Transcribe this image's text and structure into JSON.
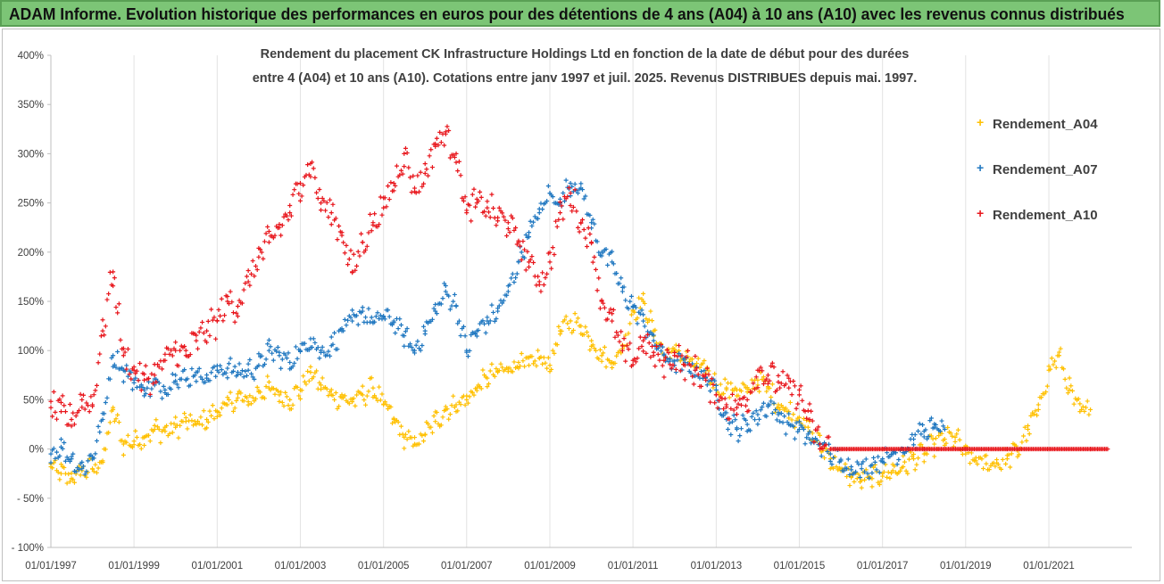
{
  "header": {
    "title": "ADAM Informe. Evolution historique des performances en euros pour des détentions de 4 ans (A04) à 10 ans (A10) avec les revenus connus distribués"
  },
  "chart_data": {
    "type": "scatter",
    "title_line1": "Rendement du placement CK Infrastructure Holdings Ltd en fonction de la date de début pour des durées",
    "title_line2": "entre 4 (A04) et 10 ans (A10).  Cotations entre janv 1997 et juil. 2025. Revenus DISTRIBUES depuis mai. 1997.",
    "xlabel": "",
    "ylabel": "",
    "y_ticks": [
      "400%",
      "350%",
      "300%",
      "250%",
      "200%",
      "150%",
      "100%",
      "50%",
      "0%",
      "- 50%",
      "- 100%"
    ],
    "y_range": [
      -100,
      400
    ],
    "x_ticks": [
      "01/01/1997",
      "01/01/1999",
      "01/01/2001",
      "01/01/2003",
      "01/01/2005",
      "01/01/2007",
      "01/01/2009",
      "01/01/2011",
      "01/01/2013",
      "01/01/2015",
      "01/01/2017",
      "01/01/2019",
      "01/01/2021"
    ],
    "x_range": [
      "1997-01-01",
      "2022-12-31"
    ],
    "marker": "+",
    "grid": "vertical",
    "legend_position": "right",
    "series": [
      {
        "name": "Rendement_A04",
        "color": "#ffc000",
        "points": [
          [
            "1997-01",
            -18
          ],
          [
            "1997-04",
            -25
          ],
          [
            "1997-07",
            -30
          ],
          [
            "1997-10",
            -22
          ],
          [
            "1998-01",
            -20
          ],
          [
            "1998-04",
            -12
          ],
          [
            "1998-07",
            40
          ],
          [
            "1998-10",
            5
          ],
          [
            "1999-01",
            8
          ],
          [
            "1999-04",
            12
          ],
          [
            "1999-07",
            20
          ],
          [
            "1999-10",
            18
          ],
          [
            "2000-01",
            22
          ],
          [
            "2000-04",
            28
          ],
          [
            "2000-07",
            25
          ],
          [
            "2000-10",
            30
          ],
          [
            "2001-01",
            38
          ],
          [
            "2001-04",
            45
          ],
          [
            "2001-07",
            52
          ],
          [
            "2001-10",
            48
          ],
          [
            "2002-01",
            58
          ],
          [
            "2002-04",
            62
          ],
          [
            "2002-07",
            55
          ],
          [
            "2002-10",
            50
          ],
          [
            "2003-01",
            60
          ],
          [
            "2003-04",
            78
          ],
          [
            "2003-07",
            65
          ],
          [
            "2003-10",
            55
          ],
          [
            "2004-01",
            52
          ],
          [
            "2004-04",
            48
          ],
          [
            "2004-07",
            55
          ],
          [
            "2004-10",
            62
          ],
          [
            "2005-01",
            45
          ],
          [
            "2005-04",
            30
          ],
          [
            "2005-07",
            12
          ],
          [
            "2005-10",
            5
          ],
          [
            "2006-01",
            15
          ],
          [
            "2006-04",
            28
          ],
          [
            "2006-07",
            40
          ],
          [
            "2006-10",
            45
          ],
          [
            "2007-01",
            50
          ],
          [
            "2007-04",
            62
          ],
          [
            "2007-07",
            72
          ],
          [
            "2007-10",
            78
          ],
          [
            "2008-01",
            82
          ],
          [
            "2008-04",
            88
          ],
          [
            "2008-07",
            85
          ],
          [
            "2008-10",
            92
          ],
          [
            "2009-01",
            85
          ],
          [
            "2009-04",
            120
          ],
          [
            "2009-07",
            130
          ],
          [
            "2009-10",
            125
          ],
          [
            "2010-01",
            110
          ],
          [
            "2010-04",
            95
          ],
          [
            "2010-07",
            88
          ],
          [
            "2010-10",
            102
          ],
          [
            "2011-01",
            140
          ],
          [
            "2011-04",
            150
          ],
          [
            "2011-07",
            120
          ],
          [
            "2011-10",
            95
          ],
          [
            "2012-01",
            100
          ],
          [
            "2012-04",
            92
          ],
          [
            "2012-07",
            85
          ],
          [
            "2012-10",
            80
          ],
          [
            "2013-01",
            65
          ],
          [
            "2013-04",
            62
          ],
          [
            "2013-07",
            60
          ],
          [
            "2013-10",
            58
          ],
          [
            "2014-01",
            70
          ],
          [
            "2014-04",
            62
          ],
          [
            "2014-07",
            45
          ],
          [
            "2014-10",
            38
          ],
          [
            "2015-01",
            32
          ],
          [
            "2015-04",
            18
          ],
          [
            "2015-07",
            5
          ],
          [
            "2015-10",
            -10
          ],
          [
            "2016-01",
            -22
          ],
          [
            "2016-04",
            -28
          ],
          [
            "2016-07",
            -32
          ],
          [
            "2016-10",
            -30
          ],
          [
            "2017-01",
            -25
          ],
          [
            "2017-04",
            -22
          ],
          [
            "2017-07",
            -18
          ],
          [
            "2017-10",
            -10
          ],
          [
            "2018-01",
            -5
          ],
          [
            "2018-04",
            5
          ],
          [
            "2018-07",
            10
          ],
          [
            "2018-10",
            12
          ],
          [
            "2019-01",
            -5
          ],
          [
            "2019-04",
            -12
          ],
          [
            "2019-07",
            -15
          ],
          [
            "2019-10",
            -14
          ],
          [
            "2020-01",
            -10
          ],
          [
            "2020-04",
            -2
          ],
          [
            "2020-07",
            20
          ],
          [
            "2020-10",
            40
          ],
          [
            "2021-01",
            80
          ],
          [
            "2021-04",
            95
          ],
          [
            "2021-07",
            60
          ],
          [
            "2021-10",
            38
          ],
          [
            "2022-01",
            40
          ]
        ]
      },
      {
        "name": "Rendement_A07",
        "color": "#1f77c0",
        "points": [
          [
            "1997-01",
            -5
          ],
          [
            "1997-04",
            2
          ],
          [
            "1997-07",
            -10
          ],
          [
            "1997-10",
            -20
          ],
          [
            "1998-01",
            -8
          ],
          [
            "1998-04",
            30
          ],
          [
            "1998-07",
            95
          ],
          [
            "1998-10",
            80
          ],
          [
            "1999-01",
            70
          ],
          [
            "1999-04",
            60
          ],
          [
            "1999-07",
            65
          ],
          [
            "1999-10",
            60
          ],
          [
            "2000-01",
            75
          ],
          [
            "2000-04",
            70
          ],
          [
            "2000-07",
            78
          ],
          [
            "2000-10",
            72
          ],
          [
            "2001-01",
            80
          ],
          [
            "2001-04",
            82
          ],
          [
            "2001-07",
            78
          ],
          [
            "2001-10",
            80
          ],
          [
            "2002-01",
            85
          ],
          [
            "2002-04",
            100
          ],
          [
            "2002-07",
            95
          ],
          [
            "2002-10",
            88
          ],
          [
            "2003-01",
            100
          ],
          [
            "2003-04",
            112
          ],
          [
            "2003-07",
            98
          ],
          [
            "2003-10",
            105
          ],
          [
            "2004-01",
            120
          ],
          [
            "2004-04",
            130
          ],
          [
            "2004-07",
            140
          ],
          [
            "2004-10",
            128
          ],
          [
            "2005-01",
            135
          ],
          [
            "2005-04",
            130
          ],
          [
            "2005-07",
            115
          ],
          [
            "2005-10",
            100
          ],
          [
            "2006-01",
            120
          ],
          [
            "2006-04",
            140
          ],
          [
            "2006-07",
            160
          ],
          [
            "2006-10",
            145
          ],
          [
            "2007-01",
            100
          ],
          [
            "2007-04",
            120
          ],
          [
            "2007-07",
            130
          ],
          [
            "2007-10",
            140
          ],
          [
            "2008-01",
            160
          ],
          [
            "2008-04",
            190
          ],
          [
            "2008-07",
            220
          ],
          [
            "2008-10",
            240
          ],
          [
            "2009-01",
            260
          ],
          [
            "2009-04",
            250
          ],
          [
            "2009-07",
            270
          ],
          [
            "2009-10",
            265
          ],
          [
            "2010-01",
            230
          ],
          [
            "2010-04",
            200
          ],
          [
            "2010-07",
            190
          ],
          [
            "2010-10",
            160
          ],
          [
            "2011-01",
            145
          ],
          [
            "2011-04",
            130
          ],
          [
            "2011-07",
            110
          ],
          [
            "2011-10",
            95
          ],
          [
            "2012-01",
            85
          ],
          [
            "2012-04",
            88
          ],
          [
            "2012-07",
            80
          ],
          [
            "2012-10",
            72
          ],
          [
            "2013-01",
            60
          ],
          [
            "2013-04",
            30
          ],
          [
            "2013-07",
            20
          ],
          [
            "2013-10",
            25
          ],
          [
            "2014-01",
            35
          ],
          [
            "2014-04",
            45
          ],
          [
            "2014-07",
            35
          ],
          [
            "2014-10",
            25
          ],
          [
            "2015-01",
            20
          ],
          [
            "2015-04",
            10
          ],
          [
            "2015-07",
            5
          ],
          [
            "2015-10",
            -5
          ],
          [
            "2016-01",
            -12
          ],
          [
            "2016-04",
            -18
          ],
          [
            "2016-07",
            -20
          ],
          [
            "2016-10",
            -16
          ],
          [
            "2017-01",
            -10
          ],
          [
            "2017-04",
            -5
          ],
          [
            "2017-07",
            0
          ],
          [
            "2017-10",
            10
          ],
          [
            "2018-01",
            18
          ],
          [
            "2018-04",
            22
          ],
          [
            "2018-07",
            20
          ]
        ]
      },
      {
        "name": "Rendement_A10",
        "color": "#e8161c",
        "points": [
          [
            "1997-01",
            42
          ],
          [
            "1997-04",
            38
          ],
          [
            "1997-07",
            30
          ],
          [
            "1997-10",
            50
          ],
          [
            "1998-01",
            45
          ],
          [
            "1998-04",
            120
          ],
          [
            "1998-07",
            180
          ],
          [
            "1998-10",
            95
          ],
          [
            "1999-01",
            80
          ],
          [
            "1999-04",
            70
          ],
          [
            "1999-07",
            75
          ],
          [
            "1999-10",
            90
          ],
          [
            "2000-01",
            100
          ],
          [
            "2000-04",
            95
          ],
          [
            "2000-07",
            110
          ],
          [
            "2000-10",
            120
          ],
          [
            "2001-01",
            130
          ],
          [
            "2001-04",
            150
          ],
          [
            "2001-07",
            145
          ],
          [
            "2001-10",
            170
          ],
          [
            "2002-01",
            195
          ],
          [
            "2002-04",
            210
          ],
          [
            "2002-07",
            225
          ],
          [
            "2002-10",
            240
          ],
          [
            "2003-01",
            270
          ],
          [
            "2003-04",
            290
          ],
          [
            "2003-07",
            250
          ],
          [
            "2003-10",
            240
          ],
          [
            "2004-01",
            220
          ],
          [
            "2004-04",
            180
          ],
          [
            "2004-07",
            210
          ],
          [
            "2004-10",
            230
          ],
          [
            "2005-01",
            245
          ],
          [
            "2005-04",
            270
          ],
          [
            "2005-07",
            300
          ],
          [
            "2005-10",
            265
          ],
          [
            "2006-01",
            280
          ],
          [
            "2006-04",
            310
          ],
          [
            "2006-07",
            320
          ],
          [
            "2006-10",
            300
          ],
          [
            "2007-01",
            240
          ],
          [
            "2007-04",
            250
          ],
          [
            "2007-07",
            245
          ],
          [
            "2007-10",
            235
          ],
          [
            "2008-01",
            230
          ],
          [
            "2008-04",
            210
          ],
          [
            "2008-07",
            190
          ],
          [
            "2008-10",
            170
          ],
          [
            "2009-01",
            190
          ],
          [
            "2009-04",
            240
          ],
          [
            "2009-07",
            260
          ],
          [
            "2009-10",
            230
          ],
          [
            "2010-01",
            210
          ],
          [
            "2010-04",
            150
          ],
          [
            "2010-07",
            130
          ],
          [
            "2010-10",
            100
          ],
          [
            "2011-01",
            90
          ],
          [
            "2011-04",
            110
          ],
          [
            "2011-07",
            95
          ],
          [
            "2011-10",
            90
          ],
          [
            "2012-01",
            95
          ],
          [
            "2012-04",
            85
          ],
          [
            "2012-07",
            80
          ],
          [
            "2012-10",
            70
          ],
          [
            "2013-01",
            55
          ],
          [
            "2013-04",
            45
          ],
          [
            "2013-07",
            42
          ],
          [
            "2013-10",
            50
          ],
          [
            "2014-01",
            80
          ],
          [
            "2014-04",
            75
          ],
          [
            "2014-07",
            68
          ],
          [
            "2014-10",
            62
          ],
          [
            "2015-01",
            55
          ],
          [
            "2015-04",
            30
          ],
          [
            "2015-07",
            5
          ],
          [
            "2015-10",
            0
          ],
          [
            "2016-01",
            0
          ],
          [
            "2017-01",
            0
          ],
          [
            "2018-01",
            0
          ],
          [
            "2019-01",
            0
          ],
          [
            "2020-01",
            0
          ],
          [
            "2021-01",
            0
          ],
          [
            "2022-01",
            0
          ],
          [
            "2022-06",
            0
          ]
        ]
      }
    ]
  }
}
